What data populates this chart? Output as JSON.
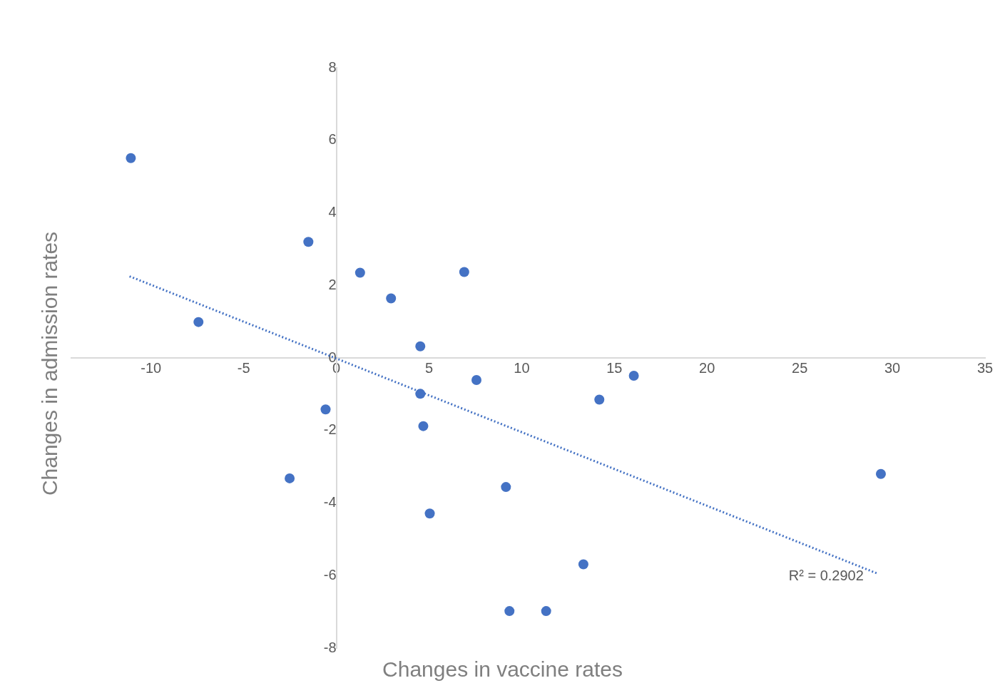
{
  "chart_data": {
    "type": "scatter",
    "xlabel": "Changes in vaccine rates",
    "ylabel": "Changes in admission rates",
    "xlim": [
      -14.3,
      35
    ],
    "xticks": [
      -10,
      -5,
      0,
      5,
      10,
      15,
      20,
      25,
      30,
      35
    ],
    "ylim": [
      -8,
      8
    ],
    "yticks": [
      -8,
      -6,
      -4,
      -2,
      0,
      2,
      4,
      6,
      8
    ],
    "grid": false,
    "legend": false,
    "marker": "circle",
    "series": [
      {
        "type": "scatter",
        "color": "#4472c4",
        "x": [
          -11.09,
          -7.44,
          -1.51,
          1.28,
          2.95,
          6.9,
          4.53,
          7.56,
          16.05,
          4.53,
          14.19,
          -0.58,
          4.69,
          -2.52,
          9.15,
          5.04,
          29.38,
          13.33,
          9.34,
          11.32
        ],
        "values": [
          5.51,
          0.99,
          3.2,
          2.35,
          1.64,
          2.37,
          0.32,
          -0.61,
          -0.49,
          -0.99,
          -1.15,
          -1.42,
          -1.88,
          -3.32,
          -3.56,
          -4.29,
          -3.2,
          -5.69,
          -6.98,
          -6.98
        ]
      },
      {
        "type": "line",
        "color": "#4472c4",
        "line_style": "dotted",
        "marker": "none",
        "x": [
          -11.16,
          29.22
        ],
        "values": [
          2.25,
          -5.95
        ]
      }
    ],
    "annotations": [
      "R² = 0.2902"
    ]
  }
}
